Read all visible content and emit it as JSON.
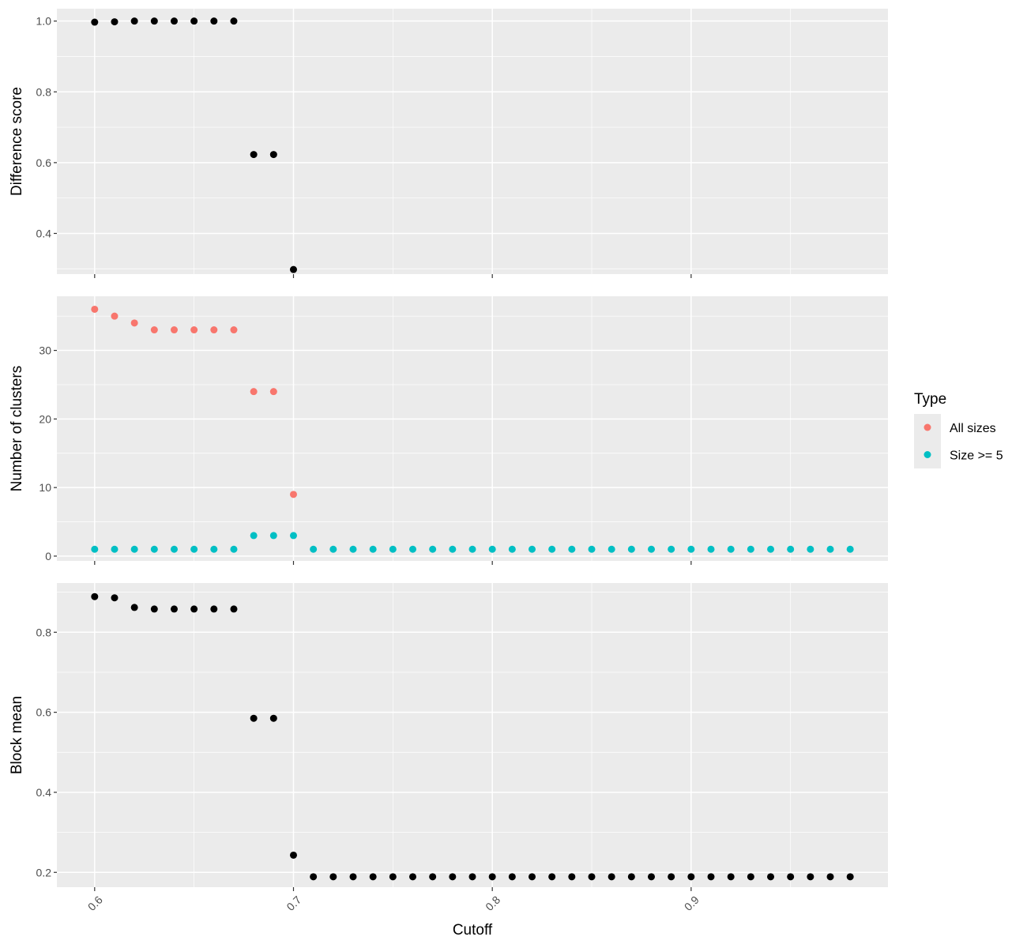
{
  "chart_data": [
    {
      "type": "scatter",
      "panel": "top",
      "xlabel": "",
      "ylabel": "Difference score",
      "xlim": [
        0.581,
        0.999
      ],
      "ylim": [
        0.285,
        1.035
      ],
      "x_ticks": [
        0.6,
        0.7,
        0.8,
        0.9
      ],
      "y_ticks": [
        0.4,
        0.6,
        0.8,
        1.0
      ],
      "y_tick_labels": [
        "0.4",
        "0.6",
        "0.8",
        "1.0"
      ],
      "point_color": "#000000",
      "series": [
        {
          "x": [
            0.6,
            0.61,
            0.62,
            0.63,
            0.64,
            0.65,
            0.66,
            0.67,
            0.68,
            0.69,
            0.7
          ],
          "y": [
            0.997,
            0.998,
            1.0,
            1.0,
            1.0,
            1.0,
            1.0,
            1.0,
            0.623,
            0.623,
            0.298
          ]
        }
      ]
    },
    {
      "type": "scatter",
      "panel": "middle",
      "xlabel": "",
      "ylabel": "Number of clusters",
      "xlim": [
        0.581,
        0.999
      ],
      "ylim": [
        -0.7,
        37.9
      ],
      "x_ticks": [
        0.6,
        0.7,
        0.8,
        0.9
      ],
      "y_ticks": [
        0,
        10,
        20,
        30
      ],
      "y_tick_labels": [
        "0",
        "10",
        "20",
        "30"
      ],
      "legend": {
        "title": "Type",
        "position": "right"
      },
      "series": [
        {
          "name": "All sizes",
          "color": "#F8766D",
          "x": [
            0.6,
            0.61,
            0.62,
            0.63,
            0.64,
            0.65,
            0.66,
            0.67,
            0.68,
            0.69,
            0.7
          ],
          "y": [
            36,
            35,
            34,
            33,
            33,
            33,
            33,
            33,
            24,
            24,
            9
          ]
        },
        {
          "name": "Size >= 5",
          "color": "#00BFC4",
          "x": [
            0.6,
            0.61,
            0.62,
            0.63,
            0.64,
            0.65,
            0.66,
            0.67,
            0.68,
            0.69,
            0.7,
            0.71,
            0.72,
            0.73,
            0.74,
            0.75,
            0.76,
            0.77,
            0.78,
            0.79,
            0.8,
            0.81,
            0.82,
            0.83,
            0.84,
            0.85,
            0.86,
            0.87,
            0.88,
            0.89,
            0.9,
            0.91,
            0.92,
            0.93,
            0.94,
            0.95,
            0.96,
            0.97,
            0.98
          ],
          "y": [
            1,
            1,
            1,
            1,
            1,
            1,
            1,
            1,
            3,
            3,
            3,
            1,
            1,
            1,
            1,
            1,
            1,
            1,
            1,
            1,
            1,
            1,
            1,
            1,
            1,
            1,
            1,
            1,
            1,
            1,
            1,
            1,
            1,
            1,
            1,
            1,
            1,
            1,
            1
          ]
        }
      ]
    },
    {
      "type": "scatter",
      "panel": "bottom",
      "xlabel": "Cutoff",
      "ylabel": "Block mean",
      "xlim": [
        0.581,
        0.999
      ],
      "ylim": [
        0.163,
        0.923
      ],
      "x_ticks": [
        0.6,
        0.7,
        0.8,
        0.9
      ],
      "x_tick_labels": [
        "0.6",
        "0.7",
        "0.8",
        "0.9"
      ],
      "y_ticks": [
        0.2,
        0.4,
        0.6,
        0.8
      ],
      "y_tick_labels": [
        "0.2",
        "0.4",
        "0.6",
        "0.8"
      ],
      "point_color": "#000000",
      "series": [
        {
          "x": [
            0.6,
            0.61,
            0.62,
            0.63,
            0.64,
            0.65,
            0.66,
            0.67,
            0.68,
            0.69,
            0.7,
            0.71,
            0.72,
            0.73,
            0.74,
            0.75,
            0.76,
            0.77,
            0.78,
            0.79,
            0.8,
            0.81,
            0.82,
            0.83,
            0.84,
            0.85,
            0.86,
            0.87,
            0.88,
            0.89,
            0.9,
            0.91,
            0.92,
            0.93,
            0.94,
            0.95,
            0.96,
            0.97,
            0.98
          ],
          "y": [
            0.889,
            0.886,
            0.862,
            0.858,
            0.858,
            0.858,
            0.858,
            0.858,
            0.585,
            0.585,
            0.243,
            0.189,
            0.189,
            0.189,
            0.189,
            0.189,
            0.189,
            0.189,
            0.189,
            0.189,
            0.189,
            0.189,
            0.189,
            0.189,
            0.189,
            0.189,
            0.189,
            0.189,
            0.189,
            0.189,
            0.189,
            0.189,
            0.189,
            0.189,
            0.189,
            0.189,
            0.189,
            0.189,
            0.189
          ]
        }
      ]
    }
  ]
}
